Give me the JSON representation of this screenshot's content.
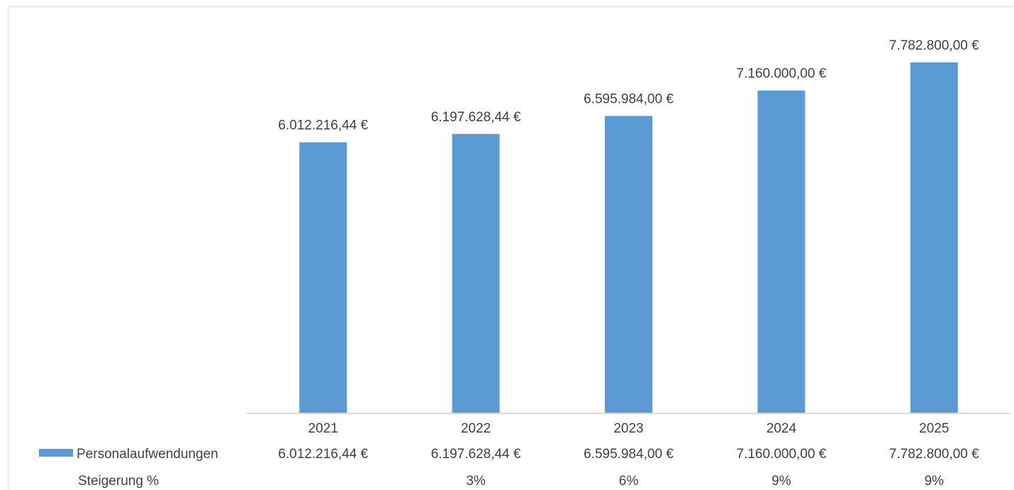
{
  "chart_data": {
    "type": "bar",
    "categories": [
      "2021",
      "2022",
      "2023",
      "2024",
      "2025"
    ],
    "series": [
      {
        "name": "Personalaufwendungen",
        "values": [
          6012216.44,
          6197628.44,
          6595984.0,
          7160000.0,
          7782800.0
        ],
        "labels": [
          "6.012.216,44 €",
          "6.197.628,44 €",
          "6.595.984,00 €",
          "7.160.000,00 €",
          "7.782.800,00 €"
        ],
        "color": "#5b9bd5"
      }
    ],
    "table": {
      "rows": [
        {
          "name": "Personalaufwendungen",
          "cells": [
            "6.012.216,44 €",
            "6.197.628,44 €",
            "6.595.984,00 €",
            "7.160.000,00 €",
            "7.782.800,00 €"
          ]
        },
        {
          "name": "Steigerung %",
          "cells": [
            "",
            "3%",
            "6%",
            "9%",
            "9%"
          ]
        }
      ]
    },
    "ylim": [
      0,
      8000000
    ],
    "grid": false,
    "legend": "data-table"
  }
}
